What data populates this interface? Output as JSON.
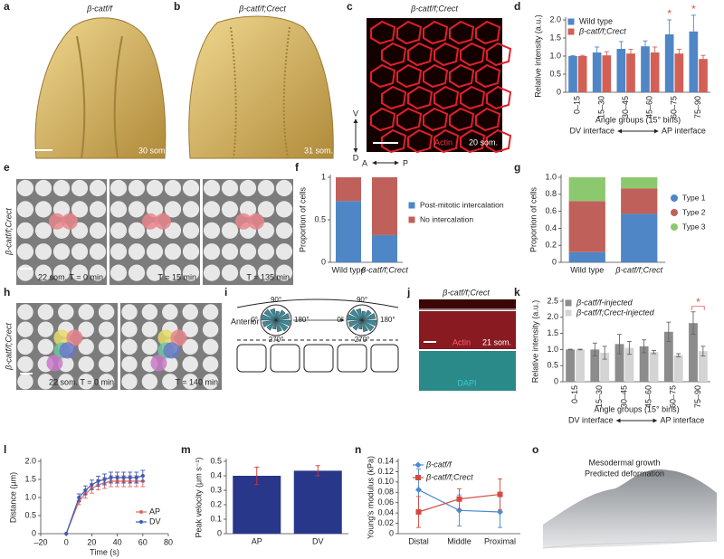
{
  "panel_labels": [
    "a",
    "b",
    "c",
    "d",
    "e",
    "f",
    "g",
    "h",
    "i",
    "j",
    "k",
    "l",
    "m",
    "n",
    "o"
  ],
  "images": {
    "a": {
      "title": "β-catf/f",
      "stage": "30 som."
    },
    "b": {
      "title": "β-catf/f;Crect",
      "stage": "31 som."
    },
    "c": {
      "title": "β-catf/f;Crect",
      "stain": "Actin",
      "stage": "20 som.",
      "axis_v": "V",
      "axis_d": "D",
      "axis_a": "A",
      "axis_p": "P"
    },
    "e": {
      "side": "β-catf/f;Crect",
      "frames": [
        "22 som. T = 0 min",
        "T = 15 min",
        "T = 135 min"
      ]
    },
    "h": {
      "side": "β-catf/f;Crect",
      "frames": [
        "22 som. T = 0 min",
        "T = 140 min"
      ]
    },
    "i": {
      "anterior": "Anterior",
      "angles": [
        "90°",
        "0°",
        "180°",
        "270°"
      ]
    },
    "j": {
      "title": "β-catf/f;Crect",
      "stain": "Actin",
      "stage": "21 som.",
      "stain2": "DAPI"
    },
    "o": {
      "line1": "Mesodermal growth",
      "line2": "Predicted deformation"
    }
  },
  "chart_data": [
    {
      "type": "bar",
      "categories": [
        "0–15",
        "15–30",
        "30–45",
        "45–60",
        "60–75",
        "75–90"
      ],
      "series": [
        {
          "name": "Wild type",
          "color": "#4f86c6",
          "values": [
            1.0,
            1.1,
            1.2,
            1.27,
            1.6,
            1.68
          ],
          "errors": [
            0.01,
            0.15,
            0.2,
            0.15,
            0.4,
            0.45
          ]
        },
        {
          "name": "β-catf/f;Crect",
          "color": "#d35f55",
          "values": [
            1.0,
            1.02,
            1.07,
            1.1,
            1.07,
            0.92
          ],
          "errors": [
            0.02,
            0.1,
            0.12,
            0.15,
            0.12,
            0.1
          ]
        }
      ],
      "ylim": [
        0,
        2
      ],
      "yticks": [
        0,
        0.5,
        {
          "value": 1,
          "label": "1.0"
        },
        1.5,
        {
          "value": 2,
          "label": "2.0"
        }
      ],
      "ylabel": "Relative intensity (a.u.)",
      "xlabel": "Angle groups (15° bins)",
      "xlabel_left": "DV interface",
      "xlabel_right": "AP interface",
      "xtick_rotation": 90,
      "legend": "upper left",
      "significance": [
        {
          "category": "60–75",
          "label": "*",
          "color": "#e0504a"
        },
        {
          "category": "75–90",
          "label": "*",
          "color": "#e0504a"
        }
      ]
    },
    {
      "type": "stacked_bar",
      "categories": [
        "Wild type",
        "β-catf/f;Crect"
      ],
      "series": [
        {
          "name": "Post-mitotic intercalation",
          "color": "#4f86c6",
          "values": [
            0.72,
            0.32
          ]
        },
        {
          "name": "No intercalation",
          "color": "#c0605a",
          "values": [
            0.28,
            0.68
          ]
        }
      ],
      "ylim": [
        0,
        1
      ],
      "yticks": [
        0,
        0.5,
        1
      ],
      "ylabel": "Proportion of cells",
      "legend": "right"
    },
    {
      "type": "stacked_bar",
      "categories": [
        "Wild type",
        "β-catf/f;Crect"
      ],
      "series": [
        {
          "name": "Type 1",
          "color": "#4f86c6",
          "marker": "circle",
          "values": [
            0.12,
            0.57
          ]
        },
        {
          "name": "Type 2",
          "color": "#c0605a",
          "marker": "circle",
          "values": [
            0.6,
            0.3
          ]
        },
        {
          "name": "Type 3",
          "color": "#8cc86e",
          "marker": "circle",
          "values": [
            0.28,
            0.13
          ]
        }
      ],
      "ylim": [
        0,
        1
      ],
      "yticks": [
        0,
        0.2,
        0.4,
        0.6,
        0.8,
        {
          "value": 1,
          "label": "1.0"
        }
      ],
      "ylabel": "Proportion of cells",
      "legend": "right"
    },
    {
      "type": "bar",
      "categories": [
        "0–15",
        "15–30",
        "30–45",
        "45–60",
        "60–75",
        "75–90"
      ],
      "series": [
        {
          "name": "β-catf/f-injected",
          "color": "#8c8c8c",
          "values": [
            1.0,
            1.0,
            1.17,
            1.1,
            1.55,
            1.82
          ],
          "errors": [
            0.01,
            0.2,
            0.3,
            0.2,
            0.3,
            0.35
          ]
        },
        {
          "name": "β-catf/f;Crect-injected",
          "color": "#d4d4d4",
          "values": [
            1.0,
            0.9,
            1.05,
            0.92,
            0.82,
            0.95
          ],
          "errors": [
            0.01,
            0.2,
            0.2,
            0.05,
            0.05,
            0.15
          ]
        }
      ],
      "error_color": "#666666",
      "ylim": [
        0,
        2.5
      ],
      "yticks": [
        0,
        0.5,
        {
          "value": 1,
          "label": "1.0"
        },
        1.5,
        {
          "value": 2,
          "label": "2.0"
        },
        2.5
      ],
      "ylabel": "Relative intensity (a.u.)",
      "xlabel": "Angle groups (15° bins)",
      "xlabel_left": "DV interface",
      "xlabel_right": "AP interface",
      "xtick_rotation": 90,
      "legend": "upper left",
      "significance": [
        {
          "category": "75–90",
          "label": "*",
          "color": "#e0504a",
          "bracket": true
        }
      ]
    },
    {
      "type": "line",
      "x": [
        0,
        10,
        15,
        20,
        25,
        30,
        35,
        40,
        45,
        50,
        55,
        60
      ],
      "series": [
        {
          "name": "AP",
          "color": "#e06666",
          "marker": "circle",
          "values": [
            0,
            0.9,
            1.1,
            1.25,
            1.35,
            1.4,
            1.45,
            1.45,
            1.45,
            1.45,
            1.45,
            1.45
          ],
          "errors": [
            0,
            0.1,
            0.12,
            0.13,
            0.14,
            0.15,
            0.15,
            0.15,
            0.15,
            0.15,
            0.15,
            0.15
          ]
        },
        {
          "name": "DV",
          "color": "#3c5cb4",
          "marker": "circle",
          "values": [
            0,
            1.0,
            1.2,
            1.35,
            1.45,
            1.5,
            1.55,
            1.55,
            1.55,
            1.55,
            1.55,
            1.6
          ],
          "errors": [
            0,
            0.1,
            0.12,
            0.13,
            0.14,
            0.15,
            0.15,
            0.15,
            0.15,
            0.15,
            0.15,
            0.15
          ]
        }
      ],
      "xlim": [
        -20,
        80
      ],
      "xticks": [
        {
          "value": -20,
          "label": "–20"
        },
        0,
        20,
        40,
        60,
        80
      ],
      "ylim": [
        0,
        2
      ],
      "yticks": [
        0,
        0.5,
        {
          "value": 1,
          "label": "1.0"
        },
        1.5,
        {
          "value": 2,
          "label": "2.0"
        }
      ],
      "xlabel": "Time (s)",
      "ylabel": "Distance (μm)",
      "legend": "lower right"
    },
    {
      "type": "bar",
      "categories": [
        "AP",
        "DV"
      ],
      "values": [
        0.4,
        0.435
      ],
      "errors": [
        0.06,
        0.035
      ],
      "color": "#28378a",
      "error_color": "#d03030",
      "ylim": [
        0,
        0.5
      ],
      "yticks": [
        0,
        0.1,
        0.2,
        0.3,
        0.4,
        0.5
      ],
      "ylabel": "Peak velocity (μm s⁻¹)"
    },
    {
      "type": "line",
      "categories": [
        "Distal",
        "Middle",
        "Proximal"
      ],
      "series": [
        {
          "name": "β-catf/f",
          "color": "#4a8ad4",
          "marker": "diamond",
          "values": [
            0.085,
            0.045,
            0.042
          ],
          "errors": [
            0.04,
            0.03,
            0.03
          ]
        },
        {
          "name": "β-catf/f;Crect",
          "color": "#d44a40",
          "marker": "square",
          "values": [
            0.042,
            0.067,
            0.076
          ],
          "errors": [
            0.03,
            0.02,
            0.03
          ]
        }
      ],
      "ylim": [
        0,
        0.14
      ],
      "yticks": [
        0,
        0.02,
        0.04,
        0.06,
        0.08,
        {
          "value": 0.1,
          "label": "0.10"
        },
        0.12,
        0.14
      ],
      "ylabel": "Young's modulus (kPa)",
      "legend": "upper center"
    }
  ]
}
